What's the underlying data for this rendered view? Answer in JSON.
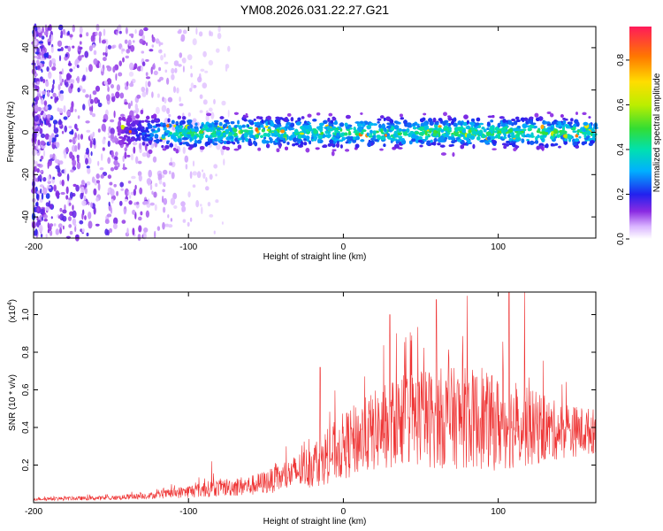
{
  "chart_data": [
    {
      "type": "heatmap",
      "title": "YM08.2026.031.22.27.G21",
      "xlabel": "Height of straight line (km)",
      "ylabel": "Frequency (Hz)",
      "xlim": [
        -200,
        163
      ],
      "ylim": [
        -50,
        50
      ],
      "x_ticks": [
        -200,
        -100,
        0,
        100
      ],
      "y_ticks": [
        -40,
        -20,
        0,
        20,
        40
      ],
      "colorbar": {
        "label": "Normalized spectral amplitude",
        "range": [
          0,
          0.95
        ],
        "ticks": [
          0.0,
          0.2,
          0.4,
          0.6,
          0.8
        ]
      },
      "signal_band": {
        "description": "dense band centered near 0 Hz",
        "start_x": -145,
        "center_hz": 0,
        "halfwidth_hz": 8,
        "peak_amplitude": 0.9
      },
      "noise_region_x": [
        -200,
        -120
      ]
    },
    {
      "type": "line",
      "xlabel": "Height of straight line (km)",
      "ylabel": "SNR (10 * v/v)",
      "y_multiplier_label": "(x10",
      "y_multiplier_exp": "4",
      "xlim": [
        -200,
        163
      ],
      "ylim": [
        0,
        1.12
      ],
      "x_ticks": [
        -200,
        -100,
        0,
        100
      ],
      "y_ticks": [
        0.2,
        0.4,
        0.6,
        0.8,
        1.0
      ],
      "color": "#ee3333",
      "envelope": [
        {
          "x": -200,
          "base": 0.02,
          "amp": 0.015
        },
        {
          "x": -150,
          "base": 0.025,
          "amp": 0.02
        },
        {
          "x": -120,
          "base": 0.04,
          "amp": 0.03
        },
        {
          "x": -100,
          "base": 0.06,
          "amp": 0.06
        },
        {
          "x": -80,
          "base": 0.08,
          "amp": 0.08
        },
        {
          "x": -60,
          "base": 0.09,
          "amp": 0.09
        },
        {
          "x": -40,
          "base": 0.13,
          "amp": 0.12
        },
        {
          "x": -20,
          "base": 0.2,
          "amp": 0.2
        },
        {
          "x": 0,
          "base": 0.3,
          "amp": 0.3
        },
        {
          "x": 20,
          "base": 0.38,
          "amp": 0.36
        },
        {
          "x": 40,
          "base": 0.45,
          "amp": 0.42
        },
        {
          "x": 60,
          "base": 0.45,
          "amp": 0.45
        },
        {
          "x": 80,
          "base": 0.45,
          "amp": 0.45
        },
        {
          "x": 100,
          "base": 0.42,
          "amp": 0.42
        },
        {
          "x": 120,
          "base": 0.4,
          "amp": 0.35
        },
        {
          "x": 140,
          "base": 0.38,
          "amp": 0.25
        },
        {
          "x": 163,
          "base": 0.38,
          "amp": 0.2
        }
      ],
      "notable_peaks": [
        {
          "x": -85,
          "y": 0.22
        },
        {
          "x": -15,
          "y": 0.72
        },
        {
          "x": 30,
          "y": 1.0
        },
        {
          "x": 60,
          "y": 1.08
        },
        {
          "x": 80,
          "y": 1.1
        },
        {
          "x": 107,
          "y": 1.12
        },
        {
          "x": 117,
          "y": 1.12
        }
      ]
    }
  ]
}
